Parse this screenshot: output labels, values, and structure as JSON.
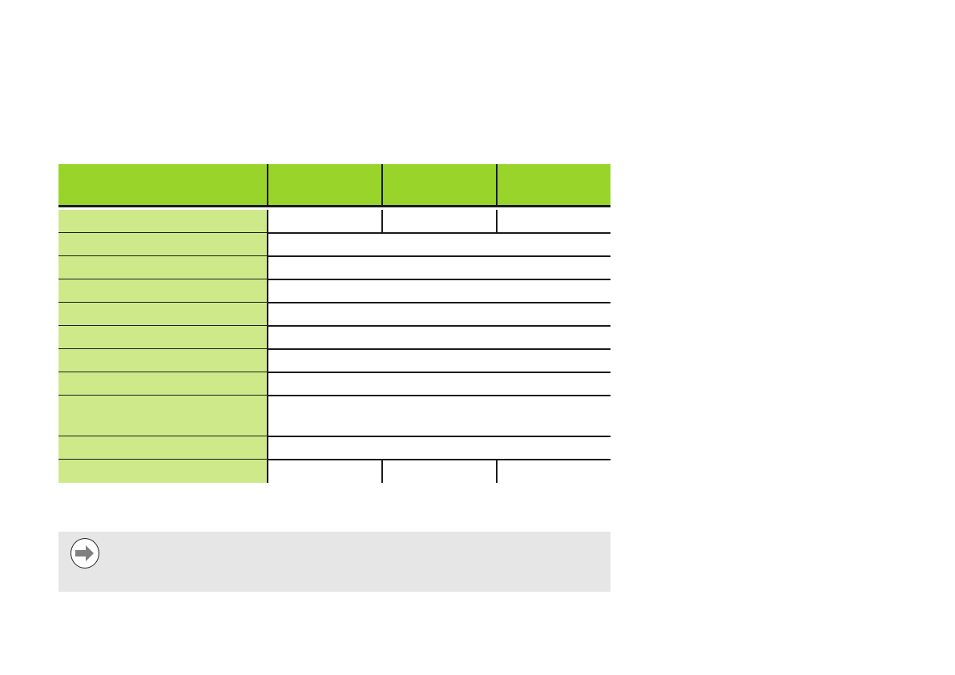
{
  "colors": {
    "header_bg": "#98d42a",
    "label_column_bg": "#cde98a",
    "note_bg": "#e6e6e6",
    "rule": "#1a1a1a",
    "icon_arrow": "#808080"
  },
  "table": {
    "columns": 4,
    "header": [
      "",
      "",
      "",
      ""
    ],
    "rows": [
      {
        "label": "",
        "cells": [
          "",
          "",
          ""
        ]
      },
      {
        "label": "",
        "cells": [
          ""
        ]
      },
      {
        "label": "",
        "cells": [
          ""
        ]
      },
      {
        "label": "",
        "cells": [
          ""
        ]
      },
      {
        "label": "",
        "cells": [
          ""
        ]
      },
      {
        "label": "",
        "cells": [
          ""
        ]
      },
      {
        "label": "",
        "cells": [
          ""
        ]
      },
      {
        "label": "",
        "cells": [
          ""
        ]
      },
      {
        "label": "",
        "cells": [
          ""
        ],
        "tall": true
      },
      {
        "label": "",
        "cells": [
          ""
        ]
      },
      {
        "label": "",
        "cells": [
          "",
          "",
          ""
        ]
      }
    ]
  },
  "note": {
    "icon": "arrow-right-circle-icon",
    "text": ""
  }
}
